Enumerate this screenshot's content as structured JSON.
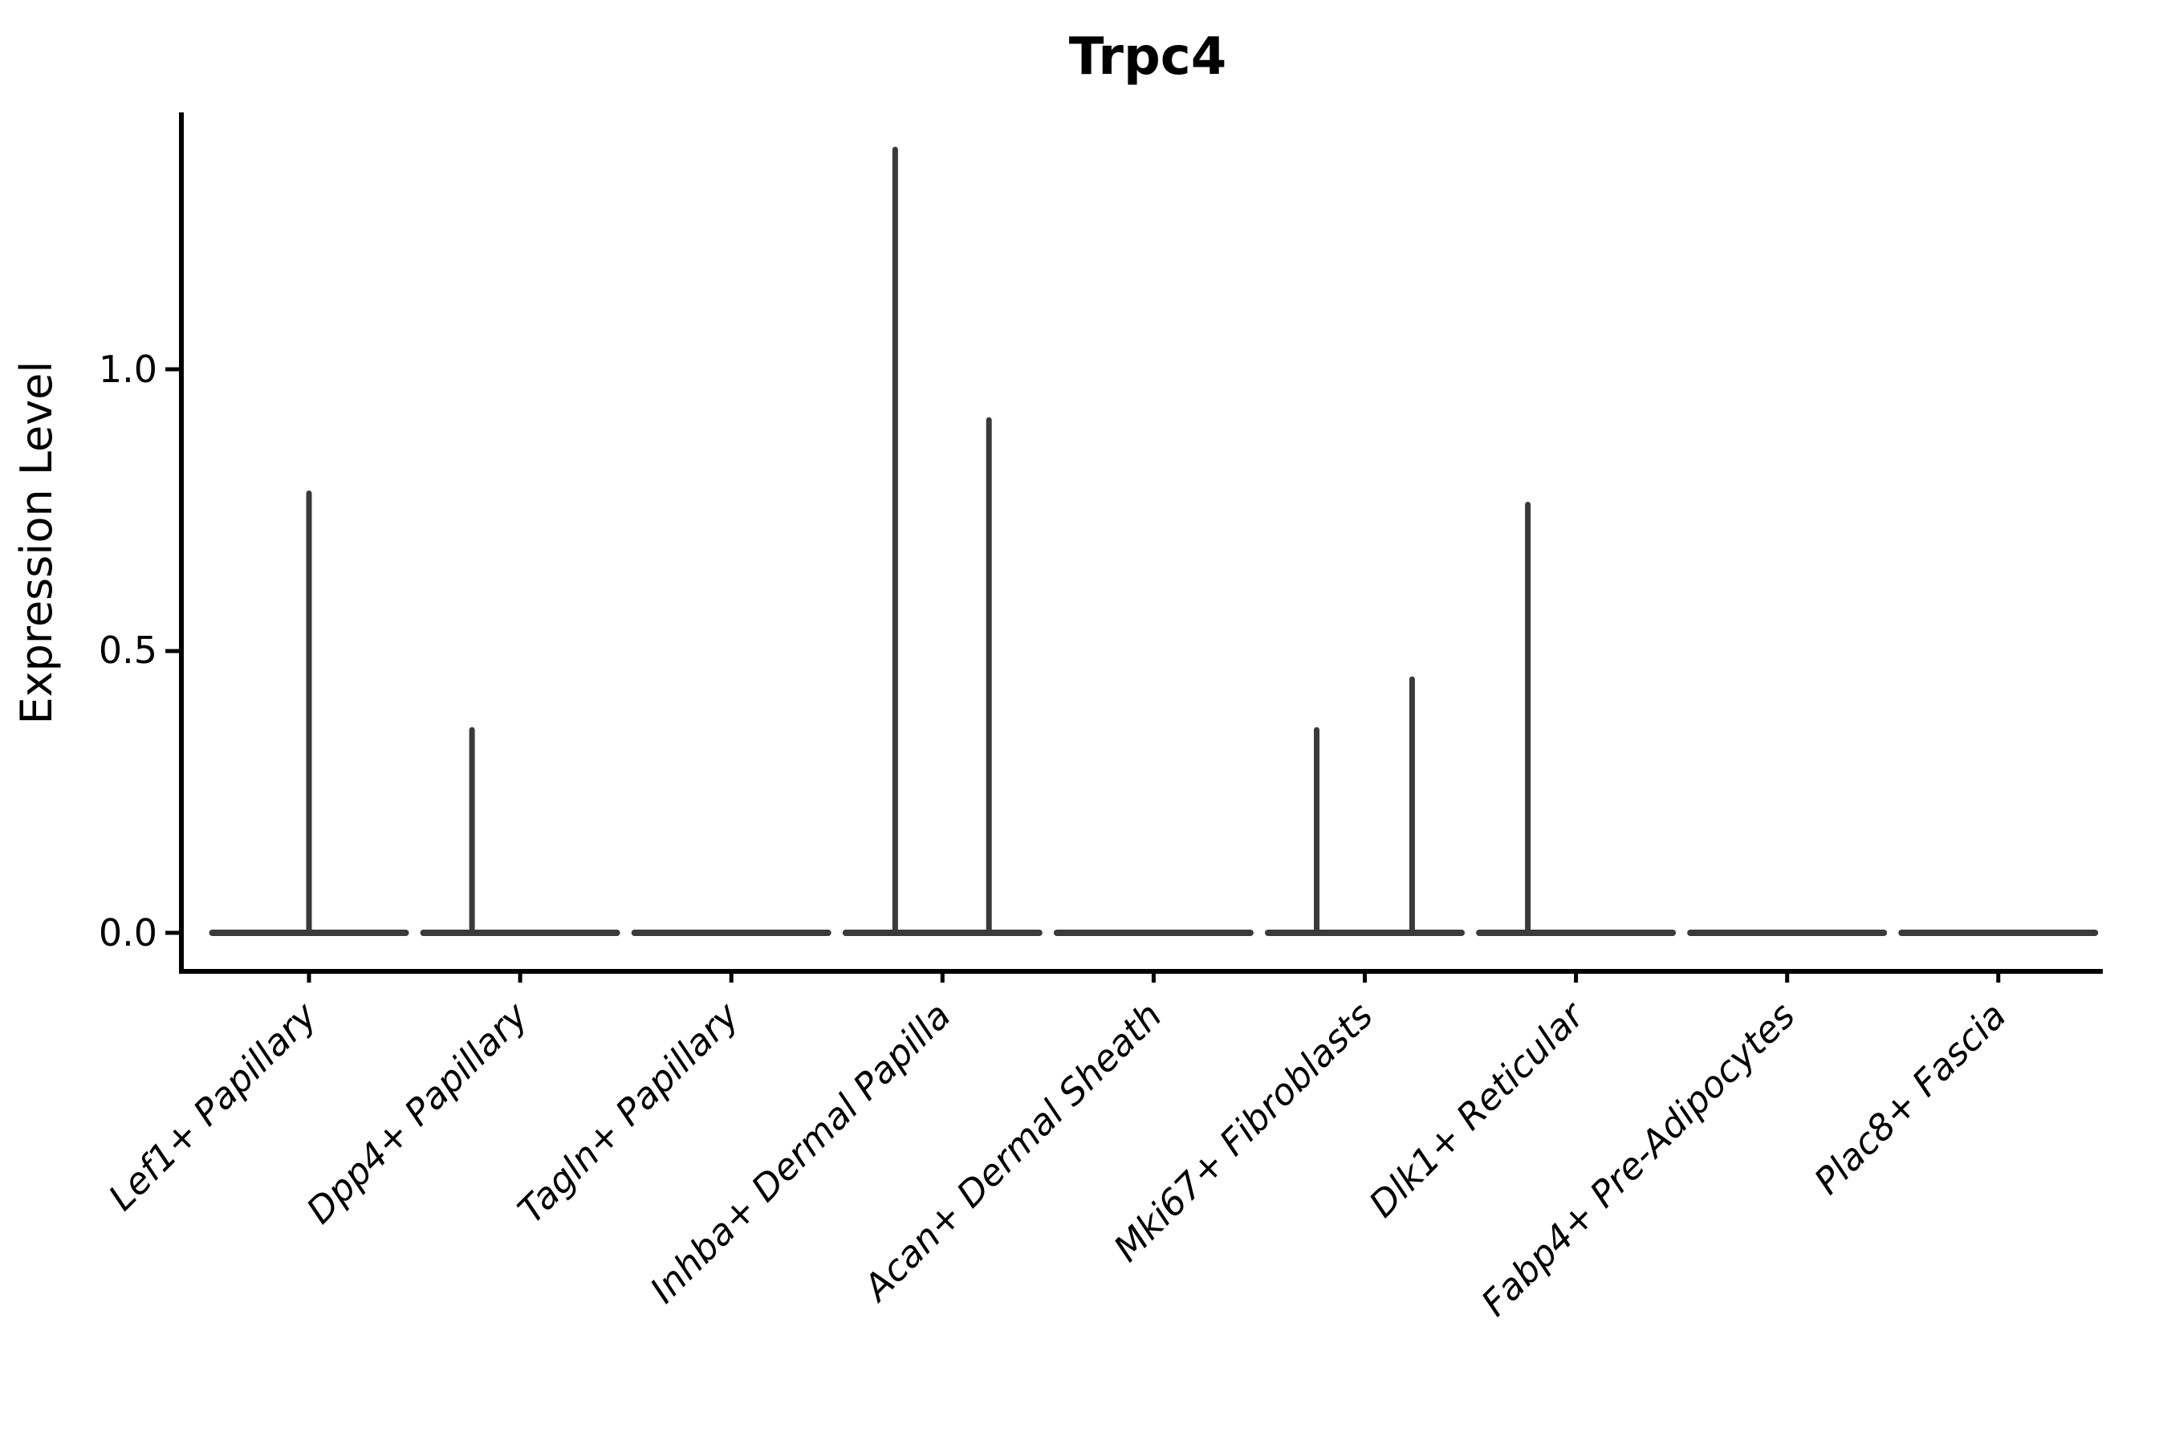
{
  "figure": {
    "background": "#ffffff"
  },
  "chart_data": {
    "type": "violin",
    "title": "Trpc4",
    "xlabel": "",
    "ylabel": "Expression Level",
    "categories": [
      "Lef1+ Papillary",
      "Dpp4+ Papillary",
      "Tagln+ Papillary",
      "Inhba+ Dermal Papilla",
      "Acan+ Dermal Sheath",
      "Mki67+ Fibroblasts",
      "Dlk1+ Reticular",
      "Fabp4+ Pre-Adipocytes",
      "Plac8+ Fascia"
    ],
    "y_ticks": [
      0.0,
      0.5,
      1.0
    ],
    "y_tick_labels": [
      "0.0",
      "0.5",
      "1.0"
    ],
    "ylim": [
      -0.07,
      1.46
    ],
    "grid": false,
    "legend": "none",
    "axis_color": "#000000",
    "violin_color": "#3a3a3a",
    "body_halfwidth_frac": 0.458,
    "violins": [
      {
        "category": "Lef1+ Papillary",
        "baseline_value": 0.0,
        "spikes": [
          {
            "offset_frac": 0.0,
            "peak": 0.78
          }
        ]
      },
      {
        "category": "Dpp4+ Papillary",
        "baseline_value": 0.0,
        "spikes": [
          {
            "offset_frac": -0.228,
            "peak": 0.36
          }
        ]
      },
      {
        "category": "Tagln+ Papillary",
        "baseline_value": 0.0,
        "spikes": []
      },
      {
        "category": "Inhba+ Dermal Papilla",
        "baseline_value": 0.0,
        "spikes": [
          {
            "offset_frac": -0.224,
            "peak": 1.39
          },
          {
            "offset_frac": 0.22,
            "peak": 0.91
          }
        ]
      },
      {
        "category": "Acan+ Dermal Sheath",
        "baseline_value": 0.0,
        "spikes": []
      },
      {
        "category": "Mki67+ Fibroblasts",
        "baseline_value": 0.0,
        "spikes": [
          {
            "offset_frac": -0.228,
            "peak": 0.36
          },
          {
            "offset_frac": 0.224,
            "peak": 0.45
          }
        ]
      },
      {
        "category": "Dlk1+ Reticular",
        "baseline_value": 0.0,
        "spikes": [
          {
            "offset_frac": -0.228,
            "peak": 0.76
          }
        ]
      },
      {
        "category": "Fabp4+ Pre-Adipocytes",
        "baseline_value": 0.0,
        "spikes": []
      },
      {
        "category": "Plac8+ Fascia",
        "baseline_value": 0.0,
        "spikes": []
      }
    ]
  }
}
